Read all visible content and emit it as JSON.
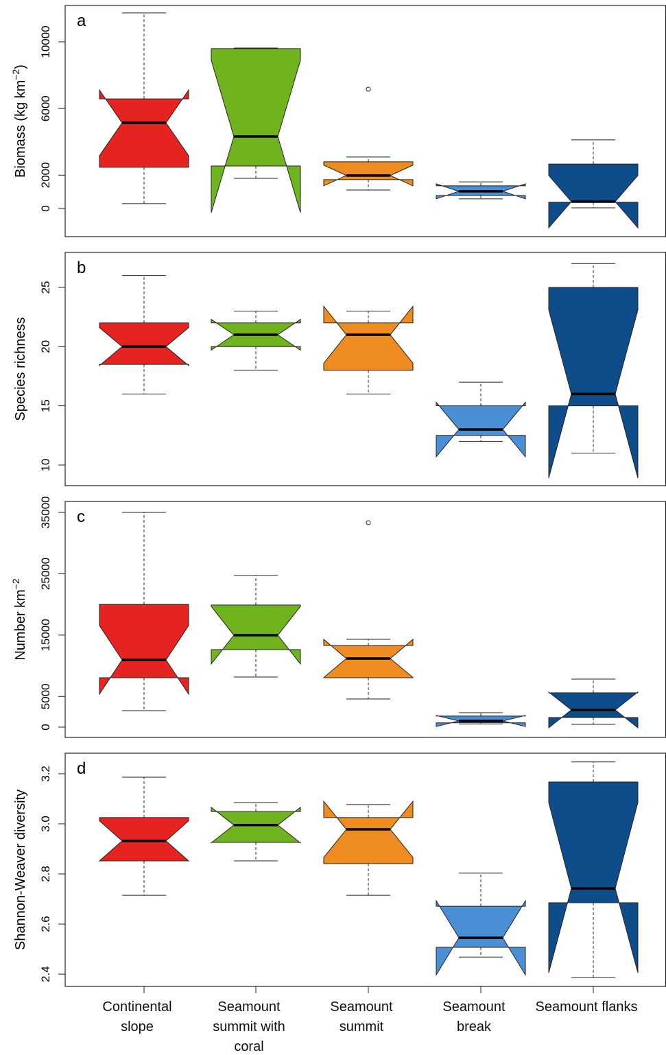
{
  "chart_data": [
    {
      "type": "box",
      "panel_label": "a",
      "ylabel": "Biomass (kg km",
      "ylabel_sup": "−2",
      "ylabel_end": ")",
      "ylim": [
        -1690,
        12180
      ],
      "yticks": [
        0,
        2000,
        6000,
        10000
      ],
      "colors": [
        "#e52421",
        "#6fb41f",
        "#ef8c21",
        "#4a8fd4",
        "#0e4d8a"
      ],
      "boxes": [
        {
          "whisker_low": 290,
          "q1": 2470,
          "notch_low": 3170,
          "median": 5140,
          "notch_high": 7110,
          "q3": 6580,
          "whisker_high": 11730
        },
        {
          "whisker_low": 1810,
          "q1": 2550,
          "notch_low": -250,
          "median": 4320,
          "notch_high": 8890,
          "q3": 9590,
          "whisker_high": 9630
        },
        {
          "whisker_low": 1110,
          "q1": 1730,
          "notch_low": 1360,
          "median": 1980,
          "notch_high": 2600,
          "q3": 2800,
          "whisker_high": 3090,
          "outliers": [
            7160
          ]
        },
        {
          "whisker_low": 580,
          "q1": 780,
          "notch_low": 580,
          "median": 1030,
          "notch_high": 1480,
          "q3": 1360,
          "whisker_high": 1600
        },
        {
          "whisker_low": 40,
          "q1": 380,
          "notch_low": -1160,
          "median": 410,
          "notch_high": 1980,
          "q3": 2670,
          "whisker_high": 4120
        }
      ]
    },
    {
      "type": "box",
      "panel_label": "b",
      "ylabel": "Species richness",
      "ylim": [
        8.26,
        27.95
      ],
      "yticks": [
        10,
        15,
        20,
        25
      ],
      "colors": [
        "#e52421",
        "#6fb41f",
        "#ef8c21",
        "#4a8fd4",
        "#0e4d8a"
      ],
      "boxes": [
        {
          "whisker_low": 16,
          "q1": 18.5,
          "notch_low": 18.4,
          "median": 20,
          "notch_high": 21.6,
          "q3": 22,
          "whisker_high": 26
        },
        {
          "whisker_low": 18,
          "q1": 20,
          "notch_low": 19.7,
          "median": 21,
          "notch_high": 22.3,
          "q3": 22,
          "whisker_high": 23
        },
        {
          "whisker_low": 16,
          "q1": 18,
          "notch_low": 18.6,
          "median": 21,
          "notch_high": 23.4,
          "q3": 22,
          "whisker_high": 23
        },
        {
          "whisker_low": 12,
          "q1": 12.5,
          "notch_low": 10.7,
          "median": 13,
          "notch_high": 15.3,
          "q3": 15,
          "whisker_high": 17
        },
        {
          "whisker_low": 11,
          "q1": 15,
          "notch_low": 8.9,
          "median": 16,
          "notch_high": 23.1,
          "q3": 25,
          "whisker_high": 27
        }
      ]
    },
    {
      "type": "box",
      "panel_label": "c",
      "ylabel": "Number km",
      "ylabel_sup": "−2",
      "ylim": [
        -1680,
        36790
      ],
      "yticks": [
        0,
        5000,
        15000,
        25000,
        35000
      ],
      "colors": [
        "#e52421",
        "#6fb41f",
        "#ef8c21",
        "#4a8fd4",
        "#0e4d8a"
      ],
      "boxes": [
        {
          "whisker_low": 2680,
          "q1": 8050,
          "notch_low": 5370,
          "median": 10960,
          "notch_high": 16550,
          "q3": 20000,
          "whisker_high": 35000
        },
        {
          "whisker_low": 8160,
          "q1": 12640,
          "notch_low": 10290,
          "median": 14980,
          "notch_high": 19670,
          "q3": 19900,
          "whisker_high": 24710
        },
        {
          "whisker_low": 4580,
          "q1": 8050,
          "notch_low": 8100,
          "median": 11180,
          "notch_high": 14300,
          "q3": 13310,
          "whisker_high": 14310,
          "outliers": [
            33320
          ]
        },
        {
          "whisker_low": 500,
          "q1": 700,
          "notch_low": 100,
          "median": 1000,
          "notch_high": 1900,
          "q3": 1800,
          "whisker_high": 2350
        },
        {
          "whisker_low": 450,
          "q1": 1570,
          "notch_low": -110,
          "median": 2800,
          "notch_high": 5710,
          "q3": 5590,
          "whisker_high": 7830
        }
      ]
    },
    {
      "type": "box",
      "panel_label": "d",
      "ylabel": "Shannon-Weaver diversity",
      "ylim": [
        2.351,
        3.282
      ],
      "yticks": [
        2.4,
        2.6,
        2.8,
        {
          "value": 3,
          "label": "3.0"
        },
        3.2
      ],
      "colors": [
        "#e52421",
        "#6fb41f",
        "#ef8c21",
        "#4a8fd4",
        "#0e4d8a"
      ],
      "categories": [
        "Continental slope",
        "Seamount summit with coral",
        "Seamount summit",
        "Seamount break",
        "Seamount flanks"
      ],
      "boxes": [
        {
          "whisker_low": 2.715,
          "q1": 2.852,
          "notch_low": 2.852,
          "median": 2.932,
          "notch_high": 3.012,
          "q3": 3.025,
          "whisker_high": 3.186
        },
        {
          "whisker_low": 2.852,
          "q1": 2.926,
          "notch_low": 2.924,
          "median": 2.995,
          "notch_high": 3.066,
          "q3": 3.049,
          "whisker_high": 3.085
        },
        {
          "whisker_low": 2.715,
          "q1": 2.841,
          "notch_low": 2.866,
          "median": 2.978,
          "notch_high": 3.09,
          "q3": 3.025,
          "whisker_high": 3.077
        },
        {
          "whisker_low": 2.468,
          "q1": 2.507,
          "notch_low": 2.397,
          "median": 2.545,
          "notch_high": 2.693,
          "q3": 2.671,
          "whisker_high": 2.803
        },
        {
          "whisker_low": 2.386,
          "q1": 2.685,
          "notch_low": 2.405,
          "median": 2.742,
          "notch_high": 3.085,
          "q3": 3.167,
          "whisker_high": 3.247
        }
      ]
    }
  ]
}
